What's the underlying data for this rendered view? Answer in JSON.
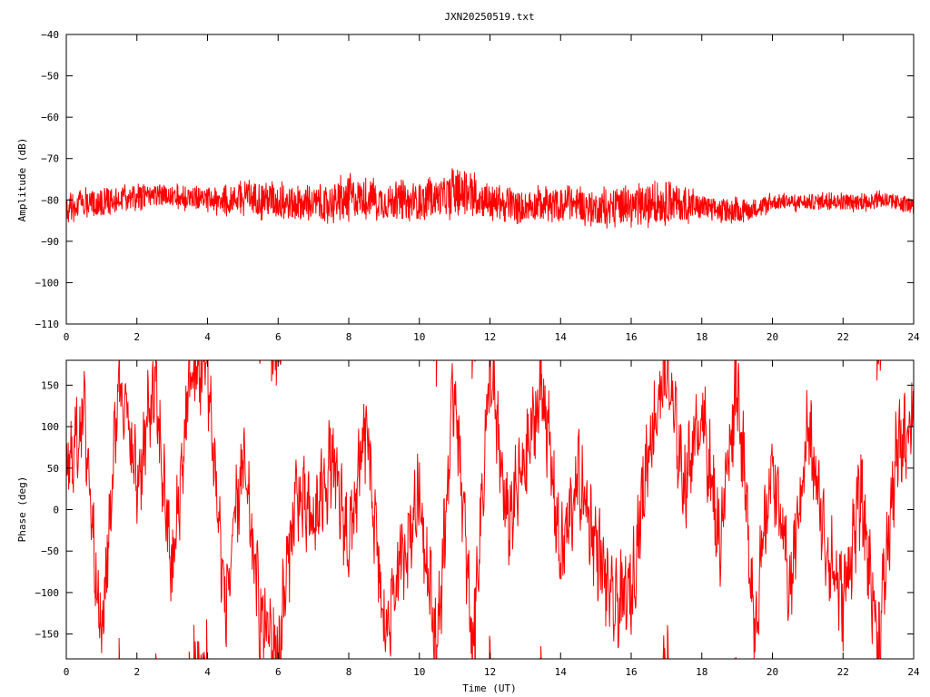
{
  "title": "JXN20250519.txt",
  "chart_data": [
    {
      "type": "line",
      "ylabel": "Amplitude (dB)",
      "xlim": [
        0,
        24
      ],
      "ylim": [
        -110,
        -40
      ],
      "xticks": [
        0,
        2,
        4,
        6,
        8,
        10,
        12,
        14,
        16,
        18,
        20,
        22,
        24
      ],
      "yticks": [
        -40,
        -50,
        -60,
        -70,
        -80,
        -90,
        -100,
        -110
      ],
      "grid": false,
      "series": [
        {
          "color": "#ff0000",
          "envelope": {
            "x": [
              0,
              0.5,
              1,
              1.5,
              2,
              2.5,
              3,
              3.5,
              4,
              4.5,
              5,
              5.5,
              6,
              6.5,
              7,
              7.5,
              8,
              8.5,
              9,
              9.5,
              10,
              10.5,
              11,
              11.5,
              12,
              12.5,
              13,
              13.5,
              14,
              14.5,
              15,
              15.5,
              16,
              16.5,
              17,
              17.5,
              18,
              18.5,
              19,
              19.5,
              20,
              20.5,
              21,
              21.5,
              22,
              22.5,
              23,
              23.5,
              24
            ],
            "min": [
              -86,
              -85,
              -85,
              -84,
              -83,
              -82,
              -82,
              -83,
              -84,
              -84,
              -84,
              -85,
              -86,
              -86,
              -86,
              -86,
              -86,
              -85,
              -86,
              -86,
              -86,
              -85,
              -85,
              -85,
              -86,
              -86,
              -86,
              -86,
              -86,
              -86,
              -87,
              -87,
              -87,
              -87,
              -87,
              -86,
              -86,
              -86,
              -86,
              -85,
              -83,
              -83,
              -83,
              -83,
              -83,
              -83,
              -83,
              -83,
              -84
            ],
            "max": [
              -78,
              -77,
              -76,
              -76,
              -76,
              -75,
              -76,
              -76,
              -76,
              -76,
              -75,
              -74,
              -75,
              -76,
              -76,
              -75,
              -73,
              -74,
              -75,
              -75,
              -75,
              -74,
              -72,
              -73,
              -75,
              -76,
              -77,
              -76,
              -76,
              -76,
              -77,
              -76,
              -76,
              -75,
              -74,
              -76,
              -78,
              -79,
              -79,
              -79,
              -78,
              -78,
              -78,
              -78,
              -78,
              -78,
              -77,
              -78,
              -79
            ]
          }
        }
      ]
    },
    {
      "type": "line",
      "xlabel": "Time (UT)",
      "ylabel": "Phase (deg)",
      "xlim": [
        0,
        24
      ],
      "ylim": [
        -180,
        180
      ],
      "xticks": [
        0,
        2,
        4,
        6,
        8,
        10,
        12,
        14,
        16,
        18,
        20,
        22,
        24
      ],
      "yticks": [
        150,
        100,
        50,
        0,
        -50,
        -100,
        -150
      ],
      "grid": false,
      "series": [
        {
          "color": "#ff0000",
          "wrap": [
            -180,
            180
          ],
          "drift": {
            "x": [
              0,
              0.5,
              1,
              1.5,
              2,
              2.5,
              3,
              3.5,
              4,
              4.5,
              5,
              5.5,
              6,
              6.5,
              7,
              7.5,
              8,
              8.5,
              9,
              9.5,
              10,
              10.5,
              11,
              11.5,
              12,
              12.5,
              13,
              13.5,
              14,
              14.5,
              15,
              15.5,
              16,
              16.5,
              17,
              17.5,
              18,
              18.5,
              19,
              19.5,
              20,
              20.5,
              21,
              21.5,
              22,
              22.5,
              23,
              23.5,
              24
            ],
            "y": [
              40,
              120,
              -160,
              170,
              30,
              150,
              -80,
              160,
              170,
              -120,
              60,
              -130,
              -170,
              20,
              -20,
              60,
              -40,
              100,
              -150,
              -60,
              20,
              -170,
              160,
              -170,
              170,
              -20,
              60,
              150,
              -60,
              40,
              -40,
              -120,
              -100,
              80,
              170,
              30,
              120,
              -40,
              160,
              -140,
              60,
              -100,
              100,
              -40,
              -110,
              20,
              -160,
              60,
              120
            ]
          }
        }
      ]
    }
  ]
}
